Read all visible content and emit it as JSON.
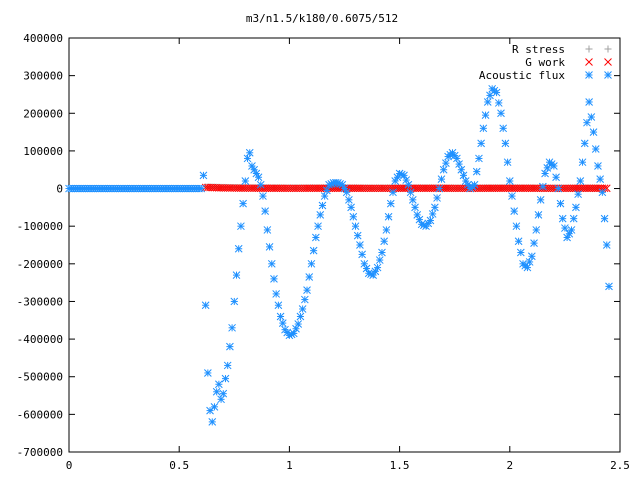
{
  "chart_data": {
    "type": "scatter",
    "title": "m3/n1.5/k180/0.6075/512",
    "xlabel": "",
    "ylabel": "",
    "xlim": [
      0,
      2.5
    ],
    "ylim": [
      -700000,
      400000
    ],
    "x_ticks": [
      "0",
      "0.5",
      "1",
      "1.5",
      "2",
      "2.5"
    ],
    "y_ticks": [
      "400000",
      "300000",
      "200000",
      "100000",
      "0",
      "-100000",
      "-200000",
      "-300000",
      "-400000",
      "-500000",
      "-600000",
      "-700000"
    ],
    "grid": false,
    "legend_position": "top-right",
    "series": [
      {
        "name": "R stress",
        "marker": "plus",
        "color": "#a0a0a0",
        "x": [
          0.62,
          0.8,
          1.0,
          1.2,
          1.4,
          1.6,
          1.8,
          2.0,
          2.2,
          2.4
        ],
        "y": [
          4000,
          2000,
          1500,
          1500,
          1000,
          1500,
          1000,
          1500,
          1000,
          1000
        ]
      },
      {
        "name": "G work",
        "marker": "cross",
        "color": "#ff0000",
        "x": [
          0.62,
          0.7,
          0.8,
          0.9,
          1.0,
          1.1,
          1.2,
          1.3,
          1.4,
          1.5,
          1.6,
          1.7,
          1.8,
          1.9,
          2.0,
          2.1,
          2.2,
          2.3,
          2.4,
          2.44
        ],
        "y": [
          3000,
          1500,
          1000,
          800,
          600,
          700,
          800,
          700,
          600,
          700,
          800,
          700,
          600,
          700,
          800,
          700,
          600,
          700,
          800,
          700
        ]
      },
      {
        "name": "Acoustic flux",
        "marker": "star",
        "color": "#1e90ff",
        "x": [
          0.0,
          0.1,
          0.2,
          0.3,
          0.4,
          0.5,
          0.6,
          0.61,
          0.62,
          0.63,
          0.64,
          0.65,
          0.66,
          0.67,
          0.68,
          0.69,
          0.7,
          0.71,
          0.72,
          0.73,
          0.74,
          0.75,
          0.76,
          0.77,
          0.78,
          0.79,
          0.8,
          0.81,
          0.82,
          0.83,
          0.84,
          0.85,
          0.86,
          0.87,
          0.88,
          0.89,
          0.9,
          0.92,
          0.94,
          0.96,
          0.98,
          1.0,
          1.02,
          1.04,
          1.06,
          1.08,
          1.1,
          1.12,
          1.14,
          1.16,
          1.18,
          1.2,
          1.22,
          1.24,
          1.26,
          1.28,
          1.3,
          1.32,
          1.34,
          1.36,
          1.38,
          1.4,
          1.42,
          1.44,
          1.46,
          1.48,
          1.5,
          1.52,
          1.54,
          1.56,
          1.58,
          1.6,
          1.62,
          1.64,
          1.66,
          1.68,
          1.7,
          1.72,
          1.74,
          1.76,
          1.78,
          1.8,
          1.82,
          1.84,
          1.86,
          1.88,
          1.9,
          1.92,
          1.94,
          1.96,
          1.98,
          2.0,
          2.02,
          2.04,
          2.06,
          2.08,
          2.1,
          2.12,
          2.14,
          2.16,
          2.18,
          2.2,
          2.22,
          2.24,
          2.26,
          2.28,
          2.3,
          2.32,
          2.34,
          2.36,
          2.38,
          2.4,
          2.42,
          2.44,
          2.45
        ],
        "y": [
          0,
          0,
          0,
          0,
          0,
          0,
          0,
          35000,
          -310000,
          -490000,
          -590000,
          -620000,
          -580000,
          -540000,
          -520000,
          -560000,
          -545000,
          -505000,
          -470000,
          -420000,
          -370000,
          -300000,
          -230000,
          -160000,
          -100000,
          -40000,
          20000,
          80000,
          95000,
          60000,
          50000,
          40000,
          30000,
          10000,
          -20000,
          -60000,
          -110000,
          -200000,
          -280000,
          -340000,
          -375000,
          -390000,
          -385000,
          -360000,
          -320000,
          -270000,
          -200000,
          -130000,
          -70000,
          -20000,
          10000,
          15000,
          15000,
          10000,
          -10000,
          -50000,
          -100000,
          -150000,
          -200000,
          -225000,
          -230000,
          -210000,
          -170000,
          -110000,
          -40000,
          20000,
          40000,
          35000,
          10000,
          -30000,
          -70000,
          -95000,
          -100000,
          -85000,
          -50000,
          0,
          50000,
          85000,
          95000,
          80000,
          50000,
          20000,
          0,
          10000,
          80000,
          160000,
          230000,
          265000,
          255000,
          200000,
          120000,
          20000,
          -60000,
          -140000,
          -200000,
          -210000,
          -180000,
          -110000,
          -30000,
          40000,
          70000,
          60000,
          0,
          -80000,
          -130000,
          -110000,
          -50000,
          20000,
          120000,
          230000,
          150000,
          60000,
          -10000,
          -150000,
          -260000
        ]
      }
    ]
  }
}
